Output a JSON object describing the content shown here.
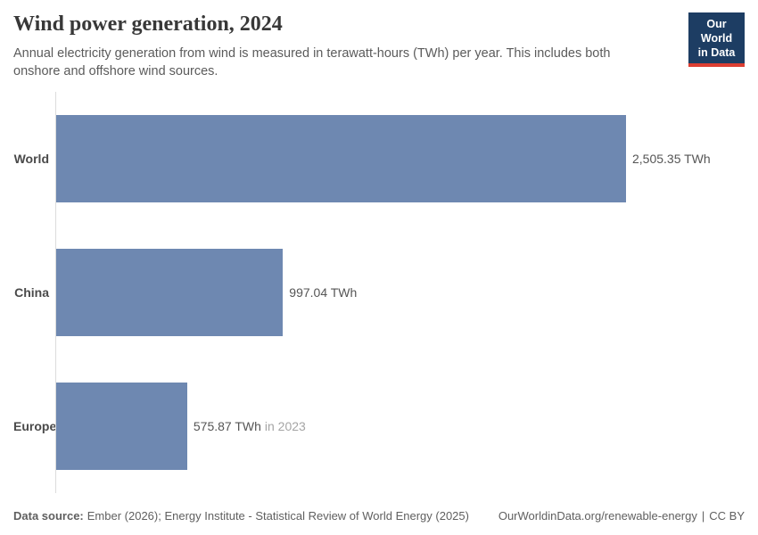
{
  "header": {
    "title": "Wind power generation, 2024",
    "subtitle": "Annual electricity generation from wind is measured in terawatt-hours (TWh) per year. This includes both onshore and offshore wind sources.",
    "logo": {
      "line1": "Our World",
      "line2": "in Data",
      "background_color": "#1d3d63",
      "accent_color": "#dc3e32"
    }
  },
  "chart_data": {
    "type": "bar",
    "orientation": "horizontal",
    "title": "Wind power generation, 2024",
    "unit": "TWh",
    "categories": [
      "World",
      "China",
      "Europe"
    ],
    "values": [
      2505.35,
      997.04,
      575.87
    ],
    "value_labels": [
      "2,505.35 TWh",
      "997.04 TWh",
      "575.87 TWh"
    ],
    "time_notices": [
      "",
      "",
      "in 2023"
    ],
    "xlim": [
      0,
      2505.35
    ],
    "bar_color": "#6e88b1",
    "axis_line_color": "#dcdcdc",
    "grid": false,
    "legend": false
  },
  "footer": {
    "datasource_label": "Data source:",
    "datasource_text": "Ember (2026); Energy Institute - Statistical Review of World Energy (2025)",
    "url": "OurWorldinData.org/renewable-energy",
    "separator": "|",
    "license": "CC BY"
  }
}
